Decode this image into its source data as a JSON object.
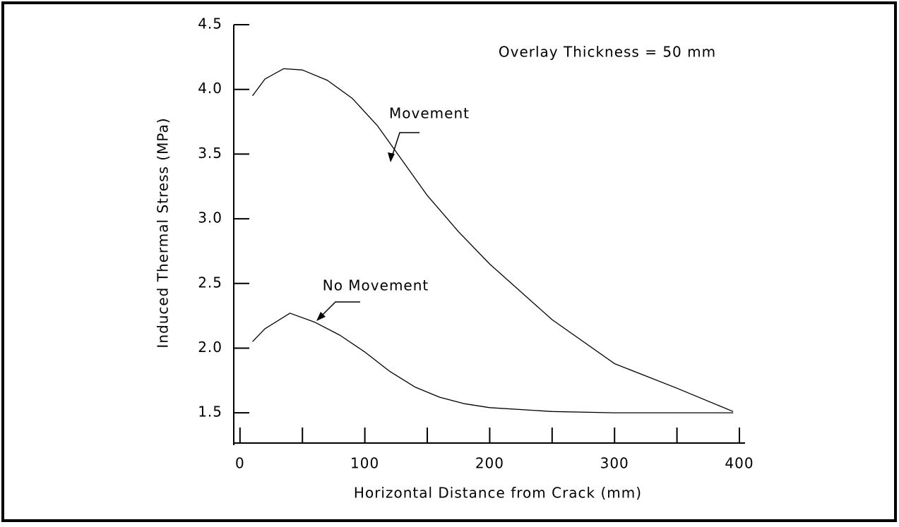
{
  "chart_data": {
    "type": "line",
    "x_label": "Horizontal Distance from Crack (mm)",
    "y_label": "Induced Thermal Stress (MPa)",
    "annotations": [
      "Overlay Thickness = 50 mm",
      "Movement",
      "No Movement"
    ],
    "xlim": [
      -5,
      400
    ],
    "xticks": [
      0,
      100,
      200,
      300,
      400
    ],
    "xminorticks": [
      50,
      150,
      250,
      350
    ],
    "ylim": [
      1.25,
      4.5
    ],
    "yticks": [
      {
        "value": 1.5,
        "label": "1.5"
      },
      {
        "value": 2,
        "label": "2.0"
      },
      {
        "value": 2.5,
        "label": "2.5"
      },
      {
        "value": 3,
        "label": "3.0"
      },
      {
        "value": 3.5,
        "label": "3.5"
      },
      {
        "value": 4,
        "label": "4.0"
      },
      {
        "value": 4.5,
        "label": "4.5"
      }
    ],
    "grid": false,
    "series": [
      {
        "name": "Movement",
        "color": "#000000",
        "x": [
          10,
          20,
          35,
          50,
          70,
          90,
          110,
          130,
          150,
          175,
          200,
          250,
          300,
          350,
          395
        ],
        "values": [
          3.95,
          4.08,
          4.16,
          4.15,
          4.07,
          3.93,
          3.72,
          3.45,
          3.18,
          2.9,
          2.65,
          2.22,
          1.88,
          1.69,
          1.51
        ]
      },
      {
        "name": "No Movement",
        "color": "#000000",
        "x": [
          10,
          20,
          40,
          60,
          80,
          100,
          120,
          140,
          160,
          180,
          200,
          250,
          300,
          350,
          395
        ],
        "values": [
          2.05,
          2.15,
          2.27,
          2.2,
          2.1,
          1.97,
          1.82,
          1.7,
          1.62,
          1.57,
          1.54,
          1.51,
          1.5,
          1.5,
          1.5
        ]
      }
    ]
  }
}
